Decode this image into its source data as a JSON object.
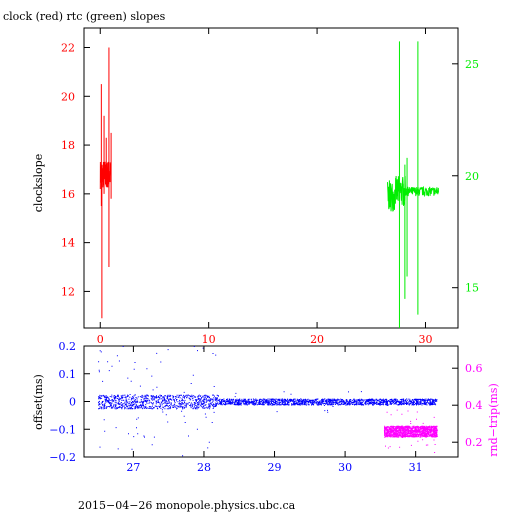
{
  "chart_data": [
    {
      "type": "line",
      "title": "clock (red) rtc (green) slopes",
      "ylabel": "clockslope",
      "x_ticks": [
        "0",
        "10",
        "20",
        "30"
      ],
      "xlim": [
        -1.5,
        33
      ],
      "left_ticks": [
        "12",
        "14",
        "16",
        "18",
        "20",
        "22"
      ],
      "left_ylim": [
        10.5,
        22.8
      ],
      "right_ticks": [
        "15",
        "20",
        "25"
      ],
      "right_ylim": [
        13.2,
        26.6
      ],
      "grid": false,
      "series": [
        {
          "color": "#ff0000",
          "axis": "left",
          "x_range": [
            0.0,
            1.0
          ],
          "base_level": 16.8,
          "noise": 0.6,
          "spikes": [
            {
              "x": 0.1,
              "low": 15.5,
              "high": 20.5
            },
            {
              "x": 0.15,
              "low": 10.9,
              "high": 17.2
            },
            {
              "x": 0.35,
              "low": 16.0,
              "high": 19.2
            },
            {
              "x": 0.55,
              "low": 16.3,
              "high": 18.3
            },
            {
              "x": 0.8,
              "low": 13.0,
              "high": 22.0
            },
            {
              "x": 1.0,
              "low": 15.8,
              "high": 18.5
            }
          ]
        },
        {
          "color": "#00ee00",
          "axis": "right",
          "x_range": [
            26.5,
            31.2
          ],
          "base_level": 19.3,
          "noise": 0.35,
          "spikes": [
            {
              "x": 27.6,
              "low": 13.2,
              "high": 26.0
            },
            {
              "x": 28.1,
              "low": 14.5,
              "high": 20.5
            },
            {
              "x": 28.3,
              "low": 15.5,
              "high": 20.8
            },
            {
              "x": 29.3,
              "low": 13.8,
              "high": 26.0
            }
          ]
        }
      ]
    },
    {
      "type": "scatter",
      "ylabel_left": "offset(ms)",
      "ylabel_right": "rnd−trip(ms)",
      "x_ticks": [
        "27",
        "28",
        "29",
        "30",
        "31"
      ],
      "xlim": [
        26.3,
        31.6
      ],
      "left_ticks": [
        "−0.2",
        "−0.1",
        "0",
        "0.1",
        "0.2"
      ],
      "left_ylim": [
        -0.2,
        0.2
      ],
      "right_ticks": [
        "0.2",
        "0.4",
        "0.6"
      ],
      "right_ylim": [
        0.12,
        0.72
      ],
      "series": [
        {
          "color": "#0000ff",
          "axis": "left",
          "x_range": [
            26.5,
            31.3
          ],
          "center": 0.0,
          "band_noisy_until": 28.2,
          "band_noisy": 0.025,
          "band_quiet": 0.011
        },
        {
          "color": "#ff00ff",
          "axis": "right",
          "x_range": [
            30.55,
            31.3
          ],
          "center": 0.26,
          "band": 0.03
        }
      ]
    }
  ],
  "footer": "2015−04−26  monopole.physics.ubc.ca"
}
